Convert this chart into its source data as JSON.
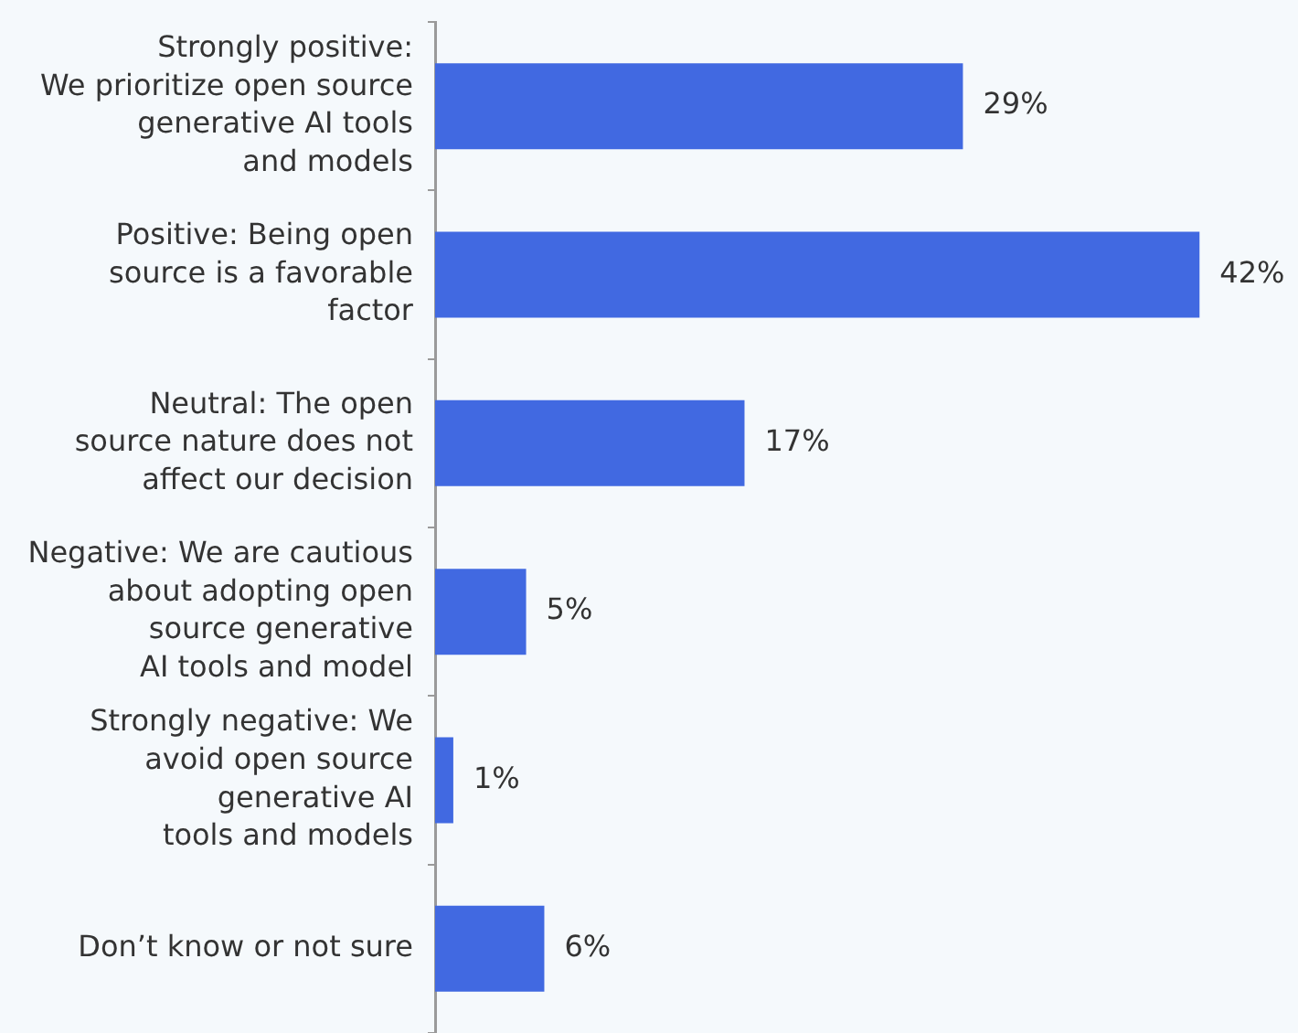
{
  "chart_data": {
    "type": "bar",
    "orientation": "horizontal",
    "categories": [
      "Strongly positive:\nWe prioritize open source\ngenerative AI tools\nand models",
      "Positive: Being open\nsource is a favorable\nfactor",
      "Neutral: The open\nsource nature does not\naffect our decision",
      "Negative: We are cautious\nabout adopting open\nsource generative\nAI tools and model",
      "Strongly negative: We\navoid open source\ngenerative AI\ntools and models",
      "Don’t know or not sure"
    ],
    "values": [
      29,
      42,
      17,
      5,
      1,
      6
    ],
    "value_labels": [
      "29%",
      "42%",
      "17%",
      "5%",
      "1%",
      "6%"
    ],
    "color": "#4169e1"
  }
}
